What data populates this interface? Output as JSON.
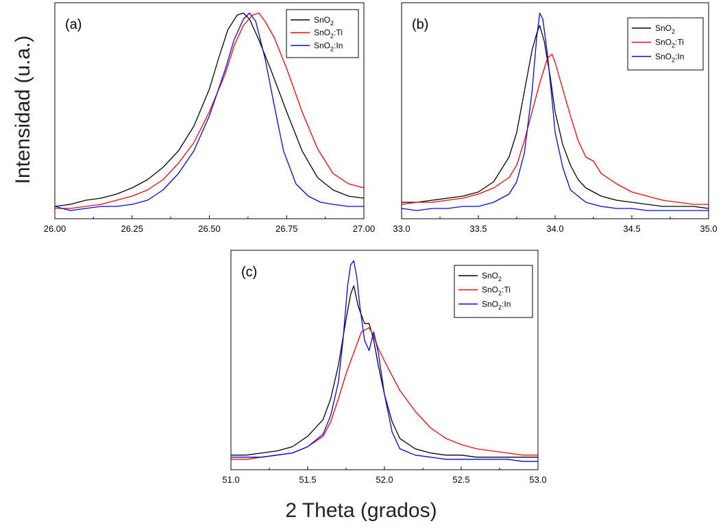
{
  "figure": {
    "ylabel": "Intensidad (u.a.)",
    "xlabel": "2 Theta (grados)"
  },
  "legend_entries": [
    {
      "name": "SnO",
      "sub": "2",
      "suffix": "",
      "color": "#000000"
    },
    {
      "name": "SnO",
      "sub": "2",
      "suffix": ":Ti",
      "color": "#ff0000"
    },
    {
      "name": "SnO",
      "sub": "2",
      "suffix": ":In",
      "color": "#0000ff"
    }
  ],
  "chart_data": [
    {
      "type": "line",
      "panel_label": "(a)",
      "xlim": [
        26.0,
        27.0
      ],
      "ylim": [
        0,
        1.05
      ],
      "xticks": [
        "26.00",
        "26.25",
        "26.50",
        "26.75",
        "27.00"
      ],
      "yticks": [],
      "grid": false,
      "legend_position": "top-right",
      "series": [
        {
          "name": "SnO2",
          "color": "#000000",
          "x": [
            26.0,
            26.05,
            26.1,
            26.15,
            26.2,
            26.25,
            26.3,
            26.35,
            26.4,
            26.45,
            26.5,
            26.53,
            26.56,
            26.59,
            26.61,
            26.63,
            26.66,
            26.7,
            26.75,
            26.8,
            26.85,
            26.9,
            26.95,
            27.0
          ],
          "y": [
            0.06,
            0.07,
            0.09,
            0.1,
            0.12,
            0.15,
            0.19,
            0.25,
            0.33,
            0.45,
            0.63,
            0.78,
            0.92,
            0.99,
            1.0,
            0.97,
            0.87,
            0.72,
            0.52,
            0.33,
            0.2,
            0.14,
            0.11,
            0.1
          ]
        },
        {
          "name": "SnO2:Ti",
          "color": "#ff0000",
          "x": [
            26.0,
            26.05,
            26.1,
            26.15,
            26.2,
            26.25,
            26.3,
            26.35,
            26.4,
            26.45,
            26.5,
            26.55,
            26.58,
            26.61,
            26.64,
            26.66,
            26.68,
            26.71,
            26.75,
            26.8,
            26.85,
            26.9,
            26.95,
            27.0
          ],
          "y": [
            0.05,
            0.05,
            0.06,
            0.07,
            0.09,
            0.11,
            0.14,
            0.19,
            0.27,
            0.37,
            0.52,
            0.7,
            0.84,
            0.94,
            0.99,
            1.0,
            0.96,
            0.88,
            0.73,
            0.52,
            0.34,
            0.22,
            0.17,
            0.15
          ]
        },
        {
          "name": "SnO2:In",
          "color": "#0000ff",
          "x": [
            26.0,
            26.05,
            26.1,
            26.15,
            26.2,
            26.25,
            26.3,
            26.35,
            26.4,
            26.45,
            26.5,
            26.55,
            26.58,
            26.61,
            26.63,
            26.65,
            26.68,
            26.71,
            26.74,
            26.78,
            26.82,
            26.86,
            26.9,
            26.95,
            27.0
          ],
          "y": [
            0.06,
            0.04,
            0.05,
            0.06,
            0.06,
            0.07,
            0.09,
            0.14,
            0.22,
            0.33,
            0.5,
            0.72,
            0.87,
            0.97,
            1.0,
            0.96,
            0.78,
            0.55,
            0.33,
            0.17,
            0.11,
            0.08,
            0.07,
            0.06,
            0.06
          ]
        }
      ]
    },
    {
      "type": "line",
      "panel_label": "(b)",
      "xlim": [
        33.0,
        35.0
      ],
      "ylim": [
        0,
        1.05
      ],
      "xticks": [
        "33.0",
        "33.5",
        "34.0",
        "34.5",
        "35.0"
      ],
      "yticks": [],
      "grid": false,
      "legend_position": "top-right",
      "series": [
        {
          "name": "SnO2",
          "color": "#000000",
          "x": [
            33.0,
            33.1,
            33.2,
            33.3,
            33.4,
            33.5,
            33.6,
            33.7,
            33.75,
            33.8,
            33.85,
            33.88,
            33.9,
            33.93,
            33.97,
            34.0,
            34.05,
            34.1,
            34.15,
            34.2,
            34.3,
            34.4,
            34.5,
            34.6,
            34.7,
            34.8,
            34.9,
            35.0
          ],
          "y": [
            0.08,
            0.08,
            0.09,
            0.1,
            0.11,
            0.13,
            0.18,
            0.3,
            0.42,
            0.62,
            0.82,
            0.9,
            0.94,
            0.86,
            0.68,
            0.52,
            0.36,
            0.26,
            0.19,
            0.15,
            0.11,
            0.09,
            0.08,
            0.07,
            0.06,
            0.06,
            0.06,
            0.05
          ]
        },
        {
          "name": "SnO2:Ti",
          "color": "#ff0000",
          "x": [
            33.0,
            33.1,
            33.2,
            33.3,
            33.4,
            33.5,
            33.6,
            33.7,
            33.75,
            33.8,
            33.85,
            33.9,
            33.95,
            33.98,
            34.0,
            34.05,
            34.1,
            34.15,
            34.2,
            34.25,
            34.3,
            34.4,
            34.5,
            34.6,
            34.7,
            34.8,
            34.9,
            35.0
          ],
          "y": [
            0.07,
            0.08,
            0.08,
            0.09,
            0.1,
            0.12,
            0.15,
            0.2,
            0.26,
            0.38,
            0.52,
            0.66,
            0.78,
            0.8,
            0.76,
            0.63,
            0.5,
            0.38,
            0.3,
            0.28,
            0.22,
            0.17,
            0.13,
            0.11,
            0.09,
            0.08,
            0.07,
            0.07
          ]
        },
        {
          "name": "SnO2:In",
          "color": "#0000ff",
          "x": [
            33.0,
            33.1,
            33.2,
            33.3,
            33.4,
            33.5,
            33.6,
            33.7,
            33.75,
            33.8,
            33.85,
            33.88,
            33.9,
            33.92,
            33.95,
            33.98,
            34.0,
            34.05,
            34.1,
            34.2,
            34.3,
            34.4,
            34.5,
            34.6,
            34.7,
            34.8,
            34.9,
            35.0
          ],
          "y": [
            0.05,
            0.04,
            0.05,
            0.05,
            0.06,
            0.06,
            0.08,
            0.12,
            0.18,
            0.32,
            0.62,
            0.88,
            1.0,
            0.97,
            0.8,
            0.58,
            0.42,
            0.25,
            0.14,
            0.08,
            0.06,
            0.05,
            0.05,
            0.04,
            0.04,
            0.04,
            0.04,
            0.04
          ]
        }
      ]
    },
    {
      "type": "line",
      "panel_label": "(c)",
      "xlim": [
        51.0,
        53.0
      ],
      "ylim": [
        0,
        1.05
      ],
      "xticks": [
        "51.0",
        "51.5",
        "52.0",
        "52.5",
        "53.0"
      ],
      "yticks": [],
      "grid": false,
      "legend_position": "top-right",
      "series": [
        {
          "name": "SnO2",
          "color": "#000000",
          "x": [
            51.0,
            51.1,
            51.2,
            51.3,
            51.4,
            51.5,
            51.6,
            51.65,
            51.7,
            51.75,
            51.78,
            51.8,
            51.83,
            51.87,
            51.9,
            51.93,
            51.96,
            52.0,
            52.05,
            52.1,
            52.2,
            52.3,
            52.4,
            52.5,
            52.6,
            52.7,
            52.8,
            52.9,
            53.0
          ],
          "y": [
            0.07,
            0.07,
            0.08,
            0.09,
            0.11,
            0.16,
            0.24,
            0.34,
            0.5,
            0.72,
            0.84,
            0.88,
            0.78,
            0.7,
            0.7,
            0.62,
            0.5,
            0.36,
            0.23,
            0.15,
            0.1,
            0.08,
            0.07,
            0.07,
            0.06,
            0.06,
            0.06,
            0.06,
            0.06
          ]
        },
        {
          "name": "SnO2:Ti",
          "color": "#ff0000",
          "x": [
            51.0,
            51.1,
            51.2,
            51.3,
            51.4,
            51.5,
            51.6,
            51.65,
            51.7,
            51.75,
            51.8,
            51.85,
            51.9,
            51.93,
            51.96,
            52.0,
            52.05,
            52.1,
            52.2,
            52.3,
            52.4,
            52.5,
            52.6,
            52.7,
            52.8,
            52.9,
            53.0
          ],
          "y": [
            0.05,
            0.05,
            0.06,
            0.07,
            0.08,
            0.11,
            0.16,
            0.23,
            0.34,
            0.46,
            0.56,
            0.66,
            0.68,
            0.64,
            0.58,
            0.52,
            0.45,
            0.38,
            0.28,
            0.2,
            0.15,
            0.12,
            0.1,
            0.09,
            0.08,
            0.07,
            0.07
          ]
        },
        {
          "name": "SnO2:In",
          "color": "#0000ff",
          "x": [
            51.0,
            51.1,
            51.2,
            51.3,
            51.4,
            51.5,
            51.6,
            51.65,
            51.7,
            51.73,
            51.76,
            51.78,
            51.8,
            51.82,
            51.84,
            51.87,
            51.9,
            51.93,
            51.96,
            52.0,
            52.05,
            52.1,
            52.2,
            52.3,
            52.4,
            52.5,
            52.6,
            52.7,
            52.8,
            52.9,
            53.0
          ],
          "y": [
            0.06,
            0.06,
            0.06,
            0.07,
            0.08,
            0.11,
            0.17,
            0.26,
            0.42,
            0.62,
            0.88,
            0.98,
            1.0,
            0.92,
            0.78,
            0.62,
            0.57,
            0.66,
            0.56,
            0.36,
            0.18,
            0.1,
            0.07,
            0.06,
            0.05,
            0.05,
            0.05,
            0.05,
            0.05,
            0.04,
            0.04
          ]
        }
      ]
    }
  ]
}
